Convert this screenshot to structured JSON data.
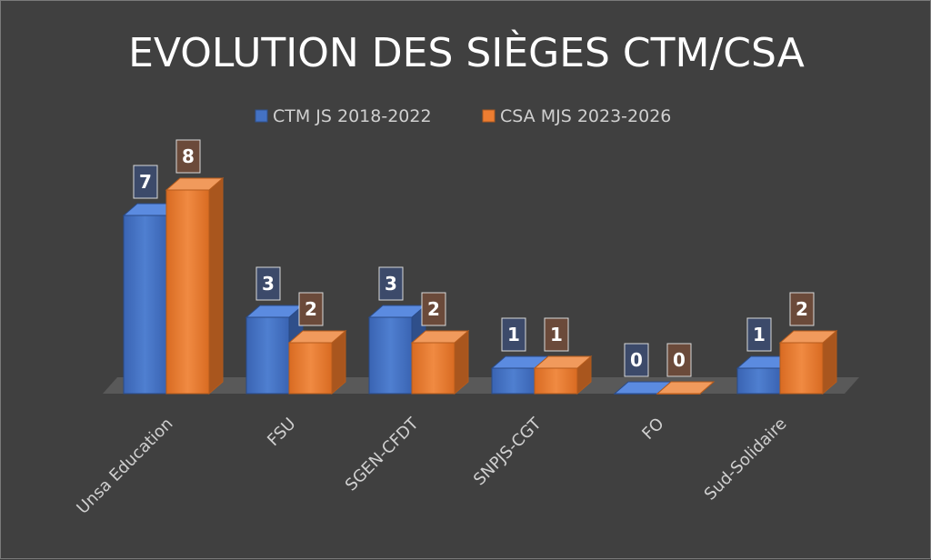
{
  "chart_data": {
    "type": "bar",
    "title": "EVOLUTION DES SIÈGES CTM/CSA",
    "categories": [
      "Unsa Education",
      "FSU",
      "SGEN-CFDT",
      "SNPJS-CGT",
      "FO",
      "Sud-Solidaire"
    ],
    "series": [
      {
        "name": "CTM JS 2018-2022",
        "values": [
          7,
          3,
          3,
          1,
          0,
          1
        ],
        "color": "#4472c4"
      },
      {
        "name": "CSA MJS 2023-2026",
        "values": [
          8,
          2,
          2,
          1,
          0,
          2
        ],
        "color": "#ed7d31"
      }
    ],
    "xlabel": "",
    "ylabel": "",
    "ylim": [
      0,
      8
    ],
    "legend": "top-center",
    "grid": false
  }
}
